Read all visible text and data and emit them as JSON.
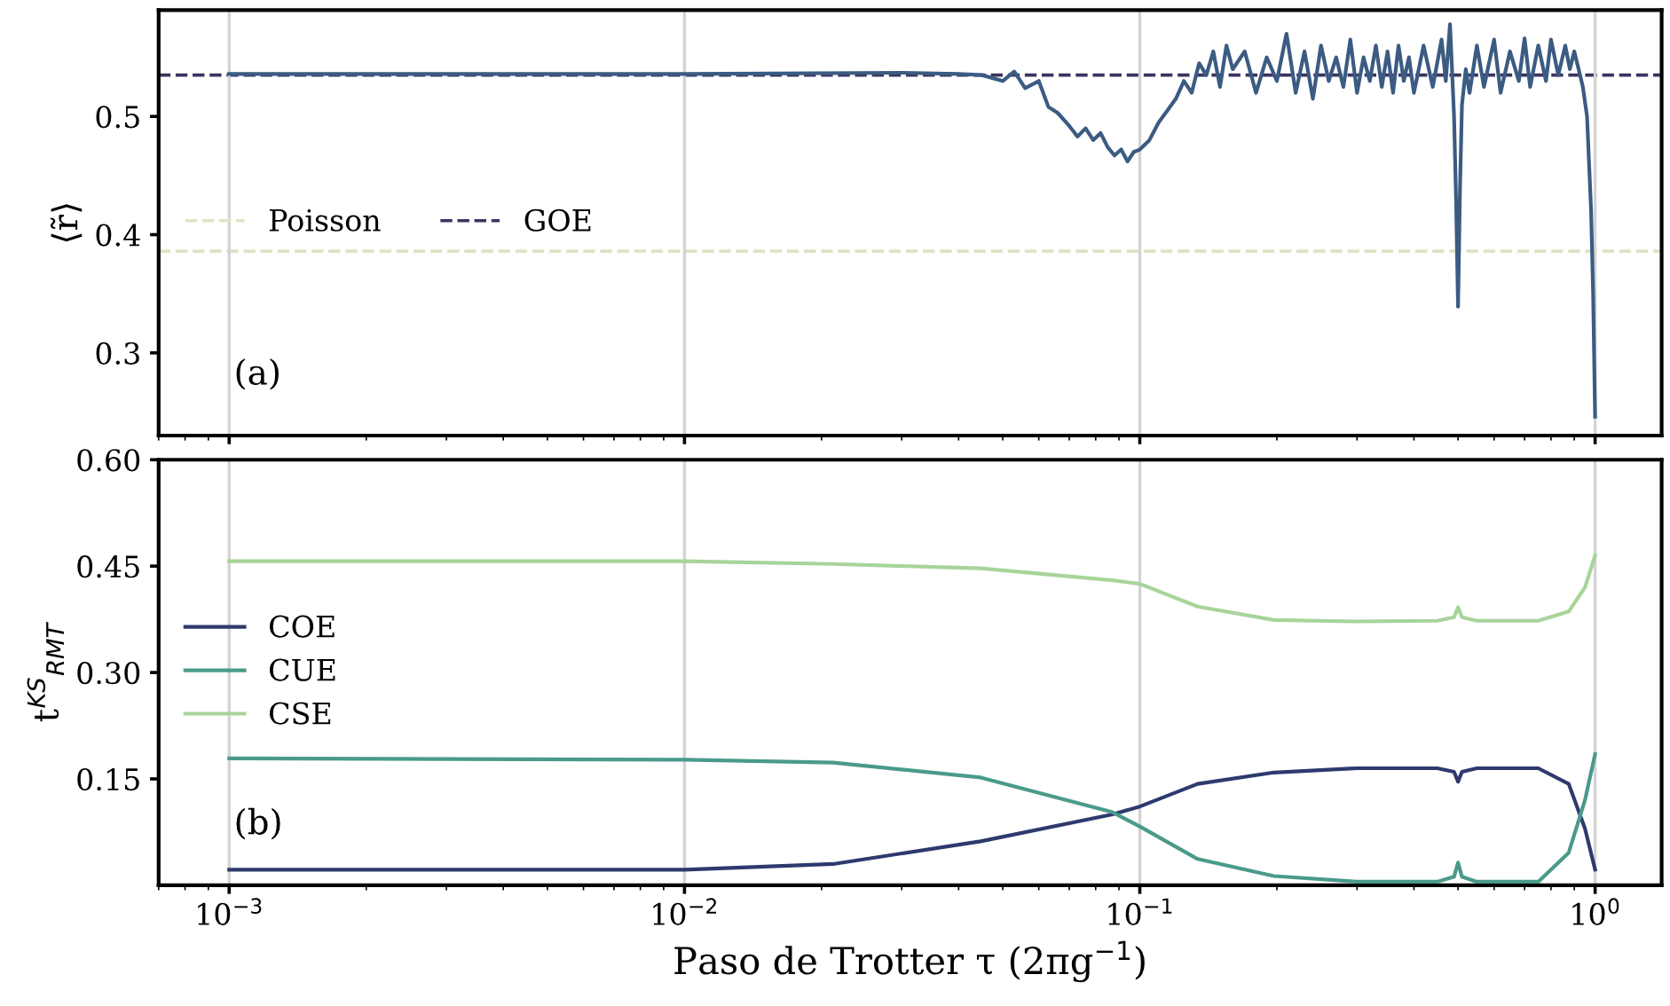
{
  "chart_data": [
    {
      "type": "line",
      "log": "x",
      "ylabel": "⟨r̃⟩",
      "xlim": [
        0.0007,
        1.4
      ],
      "ylim": [
        0.23,
        0.59
      ],
      "xticks": [
        {
          "value": 0.001,
          "label": null
        },
        {
          "value": 0.01,
          "label": null
        },
        {
          "value": 0.1,
          "label": null
        },
        {
          "value": 1,
          "label": null
        }
      ],
      "yticks": [
        0.3,
        0.4,
        0.5
      ],
      "grid": "x",
      "tick_labels": "y",
      "legend": "center left",
      "marker": "none",
      "line_style": "solid",
      "annotations": [
        "(a)"
      ],
      "ref_lines": [
        {
          "axis": "y",
          "value": 0.386,
          "label": "Poisson",
          "color": "#dfe3c5",
          "line_style": "dashed"
        },
        {
          "axis": "y",
          "value": 0.535,
          "label": "GOE",
          "color": "#3b3460",
          "line_style": "dashed"
        }
      ],
      "series": [
        {
          "color": "#3b5b82",
          "x": [
            0.001,
            0.01,
            0.03,
            0.04,
            0.045,
            0.05,
            0.053,
            0.056,
            0.06,
            0.063,
            0.066,
            0.07,
            0.073,
            0.076,
            0.079,
            0.082,
            0.085,
            0.088,
            0.091,
            0.094,
            0.097,
            0.1,
            0.105,
            0.11,
            0.115,
            0.12,
            0.125,
            0.13,
            0.135,
            0.14,
            0.145,
            0.15,
            0.155,
            0.16,
            0.17,
            0.18,
            0.19,
            0.2,
            0.21,
            0.22,
            0.23,
            0.24,
            0.25,
            0.26,
            0.27,
            0.28,
            0.29,
            0.3,
            0.31,
            0.32,
            0.33,
            0.34,
            0.35,
            0.36,
            0.37,
            0.38,
            0.39,
            0.4,
            0.42,
            0.44,
            0.46,
            0.47,
            0.48,
            0.485,
            0.49,
            0.495,
            0.5,
            0.505,
            0.51,
            0.52,
            0.53,
            0.55,
            0.57,
            0.6,
            0.62,
            0.65,
            0.68,
            0.7,
            0.72,
            0.75,
            0.78,
            0.8,
            0.83,
            0.86,
            0.88,
            0.9,
            0.92,
            0.94,
            0.96,
            0.98,
            0.99,
            1.0
          ],
          "values": [
            0.536,
            0.536,
            0.537,
            0.536,
            0.535,
            0.53,
            0.538,
            0.524,
            0.53,
            0.508,
            0.503,
            0.492,
            0.483,
            0.49,
            0.48,
            0.486,
            0.474,
            0.467,
            0.472,
            0.462,
            0.47,
            0.472,
            0.48,
            0.495,
            0.505,
            0.515,
            0.53,
            0.52,
            0.545,
            0.535,
            0.555,
            0.525,
            0.56,
            0.54,
            0.555,
            0.52,
            0.55,
            0.53,
            0.57,
            0.52,
            0.555,
            0.515,
            0.56,
            0.53,
            0.55,
            0.525,
            0.565,
            0.52,
            0.55,
            0.53,
            0.56,
            0.525,
            0.555,
            0.52,
            0.56,
            0.53,
            0.55,
            0.52,
            0.56,
            0.525,
            0.565,
            0.53,
            0.578,
            0.54,
            0.5,
            0.43,
            0.339,
            0.44,
            0.51,
            0.54,
            0.52,
            0.56,
            0.525,
            0.565,
            0.52,
            0.555,
            0.53,
            0.566,
            0.525,
            0.56,
            0.53,
            0.565,
            0.535,
            0.56,
            0.54,
            0.555,
            0.54,
            0.525,
            0.5,
            0.42,
            0.35,
            0.246
          ]
        }
      ]
    },
    {
      "type": "line",
      "log": "x",
      "xlabel": "Paso de Trotter τ (2πg$^{−1}$)",
      "ylabel": "t$^{KS}$$_{RMT}$",
      "xlim": [
        0.0007,
        1.4
      ],
      "ylim": [
        0,
        0.6
      ],
      "xticks": [
        {
          "value": 0.001,
          "label": "10$^{−3}$"
        },
        {
          "value": 0.01,
          "label": "10$^{−2}$"
        },
        {
          "value": 0.1,
          "label": "10$^{−1}$"
        },
        {
          "value": 1,
          "label": "10$^{0}$"
        }
      ],
      "yticks": [
        0.15,
        {
          "value": 0.3,
          "label": "0.30"
        },
        0.45,
        {
          "value": 0.6,
          "label": "0.60"
        }
      ],
      "grid": "x",
      "legend": "center left",
      "marker": "none",
      "line_style": "solid",
      "annotations": [
        "(b)"
      ],
      "x": [
        0.001,
        0.01,
        0.0212,
        0.0447,
        0.0871,
        0.1,
        0.134,
        0.197,
        0.3,
        0.45,
        0.49,
        0.5,
        0.51,
        0.55,
        0.75,
        0.875,
        0.95,
        1.0
      ],
      "series": [
        {
          "name": "COE",
          "color": "#2e3a6e",
          "values": [
            0.022,
            0.022,
            0.03,
            0.062,
            0.1,
            0.111,
            0.143,
            0.159,
            0.165,
            0.165,
            0.16,
            0.146,
            0.16,
            0.165,
            0.165,
            0.143,
            0.08,
            0.022
          ]
        },
        {
          "name": "CUE",
          "color": "#4a9a8a",
          "values": [
            0.179,
            0.177,
            0.173,
            0.152,
            0.103,
            0.083,
            0.037,
            0.013,
            0.005,
            0.005,
            0.012,
            0.032,
            0.012,
            0.005,
            0.005,
            0.046,
            0.12,
            0.185
          ]
        },
        {
          "name": "CSE",
          "color": "#a8d49a",
          "values": [
            0.457,
            0.457,
            0.453,
            0.447,
            0.43,
            0.425,
            0.393,
            0.374,
            0.372,
            0.373,
            0.378,
            0.392,
            0.378,
            0.373,
            0.373,
            0.386,
            0.42,
            0.465
          ]
        }
      ]
    }
  ]
}
